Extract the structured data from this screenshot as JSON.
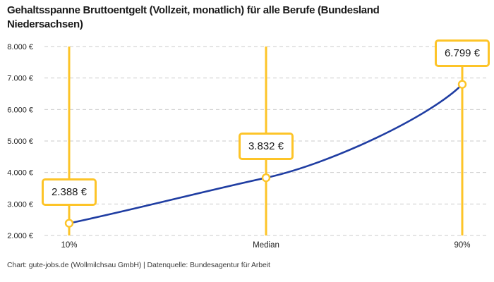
{
  "header": {
    "title_lines": [
      "Gehaltsspanne Bruttoentgelt (Vollzeit, monatlich) für alle Berufe (Bundesland",
      "Niedersachsen)"
    ]
  },
  "footer": {
    "text": "Chart: gute-jobs.de (Wollmilchsau GmbH) | Datenquelle: Bundesagentur für Arbeit"
  },
  "chart_data": {
    "type": "line",
    "title": "Gehaltsspanne Bruttoentgelt (Vollzeit, monatlich) für alle Berufe (Bundesland Niedersachsen)",
    "categories": [
      "10%",
      "Median",
      "90%"
    ],
    "points": [
      {
        "label": "10%",
        "value": 2388,
        "annotation": "2.388 €"
      },
      {
        "label": "Median",
        "value": 3832,
        "annotation": "3.832 €"
      },
      {
        "label": "90%",
        "value": 6799,
        "annotation": "6.799 €"
      }
    ],
    "ylim": [
      2000,
      8000
    ],
    "y_ticks": [
      {
        "value": 2000,
        "label": "2.000 €"
      },
      {
        "value": 3000,
        "label": "3.000 €"
      },
      {
        "value": 4000,
        "label": "4.000 €"
      },
      {
        "value": 5000,
        "label": "5.000 €"
      },
      {
        "value": 6000,
        "label": "6.000 €"
      },
      {
        "value": 7000,
        "label": "7.000 €"
      },
      {
        "value": 8000,
        "label": "8.000 €"
      }
    ],
    "xlabel": "",
    "ylabel": "",
    "grid": "horizontal-dashed",
    "legend": "none",
    "colors": {
      "line": "#1F3DA2",
      "accent": "#FDC428",
      "grid": "#CBCBCB",
      "text": "#222222"
    }
  }
}
